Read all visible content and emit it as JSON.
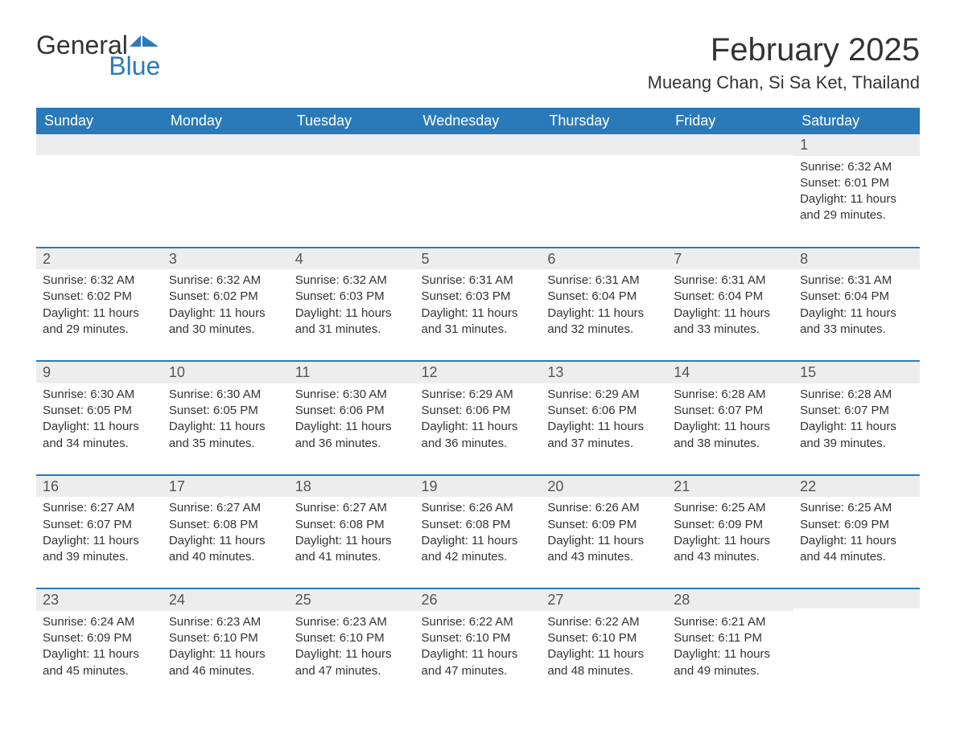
{
  "logo": {
    "part1": "General",
    "part2": "Blue"
  },
  "title": "February 2025",
  "location": "Mueang Chan, Si Sa Ket, Thailand",
  "colors": {
    "header_bg": "#2a7ab9",
    "header_text": "#ffffff",
    "band_bg": "#ededed",
    "band_border": "#2a7ab9",
    "text": "#333333",
    "page_bg": "#ffffff"
  },
  "weekday_labels": [
    "Sunday",
    "Monday",
    "Tuesday",
    "Wednesday",
    "Thursday",
    "Friday",
    "Saturday"
  ],
  "weeks": [
    [
      null,
      null,
      null,
      null,
      null,
      null,
      {
        "day": "1",
        "sunrise": "Sunrise: 6:32 AM",
        "sunset": "Sunset: 6:01 PM",
        "daylight": "Daylight: 11 hours and 29 minutes."
      }
    ],
    [
      {
        "day": "2",
        "sunrise": "Sunrise: 6:32 AM",
        "sunset": "Sunset: 6:02 PM",
        "daylight": "Daylight: 11 hours and 29 minutes."
      },
      {
        "day": "3",
        "sunrise": "Sunrise: 6:32 AM",
        "sunset": "Sunset: 6:02 PM",
        "daylight": "Daylight: 11 hours and 30 minutes."
      },
      {
        "day": "4",
        "sunrise": "Sunrise: 6:32 AM",
        "sunset": "Sunset: 6:03 PM",
        "daylight": "Daylight: 11 hours and 31 minutes."
      },
      {
        "day": "5",
        "sunrise": "Sunrise: 6:31 AM",
        "sunset": "Sunset: 6:03 PM",
        "daylight": "Daylight: 11 hours and 31 minutes."
      },
      {
        "day": "6",
        "sunrise": "Sunrise: 6:31 AM",
        "sunset": "Sunset: 6:04 PM",
        "daylight": "Daylight: 11 hours and 32 minutes."
      },
      {
        "day": "7",
        "sunrise": "Sunrise: 6:31 AM",
        "sunset": "Sunset: 6:04 PM",
        "daylight": "Daylight: 11 hours and 33 minutes."
      },
      {
        "day": "8",
        "sunrise": "Sunrise: 6:31 AM",
        "sunset": "Sunset: 6:04 PM",
        "daylight": "Daylight: 11 hours and 33 minutes."
      }
    ],
    [
      {
        "day": "9",
        "sunrise": "Sunrise: 6:30 AM",
        "sunset": "Sunset: 6:05 PM",
        "daylight": "Daylight: 11 hours and 34 minutes."
      },
      {
        "day": "10",
        "sunrise": "Sunrise: 6:30 AM",
        "sunset": "Sunset: 6:05 PM",
        "daylight": "Daylight: 11 hours and 35 minutes."
      },
      {
        "day": "11",
        "sunrise": "Sunrise: 6:30 AM",
        "sunset": "Sunset: 6:06 PM",
        "daylight": "Daylight: 11 hours and 36 minutes."
      },
      {
        "day": "12",
        "sunrise": "Sunrise: 6:29 AM",
        "sunset": "Sunset: 6:06 PM",
        "daylight": "Daylight: 11 hours and 36 minutes."
      },
      {
        "day": "13",
        "sunrise": "Sunrise: 6:29 AM",
        "sunset": "Sunset: 6:06 PM",
        "daylight": "Daylight: 11 hours and 37 minutes."
      },
      {
        "day": "14",
        "sunrise": "Sunrise: 6:28 AM",
        "sunset": "Sunset: 6:07 PM",
        "daylight": "Daylight: 11 hours and 38 minutes."
      },
      {
        "day": "15",
        "sunrise": "Sunrise: 6:28 AM",
        "sunset": "Sunset: 6:07 PM",
        "daylight": "Daylight: 11 hours and 39 minutes."
      }
    ],
    [
      {
        "day": "16",
        "sunrise": "Sunrise: 6:27 AM",
        "sunset": "Sunset: 6:07 PM",
        "daylight": "Daylight: 11 hours and 39 minutes."
      },
      {
        "day": "17",
        "sunrise": "Sunrise: 6:27 AM",
        "sunset": "Sunset: 6:08 PM",
        "daylight": "Daylight: 11 hours and 40 minutes."
      },
      {
        "day": "18",
        "sunrise": "Sunrise: 6:27 AM",
        "sunset": "Sunset: 6:08 PM",
        "daylight": "Daylight: 11 hours and 41 minutes."
      },
      {
        "day": "19",
        "sunrise": "Sunrise: 6:26 AM",
        "sunset": "Sunset: 6:08 PM",
        "daylight": "Daylight: 11 hours and 42 minutes."
      },
      {
        "day": "20",
        "sunrise": "Sunrise: 6:26 AM",
        "sunset": "Sunset: 6:09 PM",
        "daylight": "Daylight: 11 hours and 43 minutes."
      },
      {
        "day": "21",
        "sunrise": "Sunrise: 6:25 AM",
        "sunset": "Sunset: 6:09 PM",
        "daylight": "Daylight: 11 hours and 43 minutes."
      },
      {
        "day": "22",
        "sunrise": "Sunrise: 6:25 AM",
        "sunset": "Sunset: 6:09 PM",
        "daylight": "Daylight: 11 hours and 44 minutes."
      }
    ],
    [
      {
        "day": "23",
        "sunrise": "Sunrise: 6:24 AM",
        "sunset": "Sunset: 6:09 PM",
        "daylight": "Daylight: 11 hours and 45 minutes."
      },
      {
        "day": "24",
        "sunrise": "Sunrise: 6:23 AM",
        "sunset": "Sunset: 6:10 PM",
        "daylight": "Daylight: 11 hours and 46 minutes."
      },
      {
        "day": "25",
        "sunrise": "Sunrise: 6:23 AM",
        "sunset": "Sunset: 6:10 PM",
        "daylight": "Daylight: 11 hours and 47 minutes."
      },
      {
        "day": "26",
        "sunrise": "Sunrise: 6:22 AM",
        "sunset": "Sunset: 6:10 PM",
        "daylight": "Daylight: 11 hours and 47 minutes."
      },
      {
        "day": "27",
        "sunrise": "Sunrise: 6:22 AM",
        "sunset": "Sunset: 6:10 PM",
        "daylight": "Daylight: 11 hours and 48 minutes."
      },
      {
        "day": "28",
        "sunrise": "Sunrise: 6:21 AM",
        "sunset": "Sunset: 6:11 PM",
        "daylight": "Daylight: 11 hours and 49 minutes."
      },
      null
    ]
  ]
}
